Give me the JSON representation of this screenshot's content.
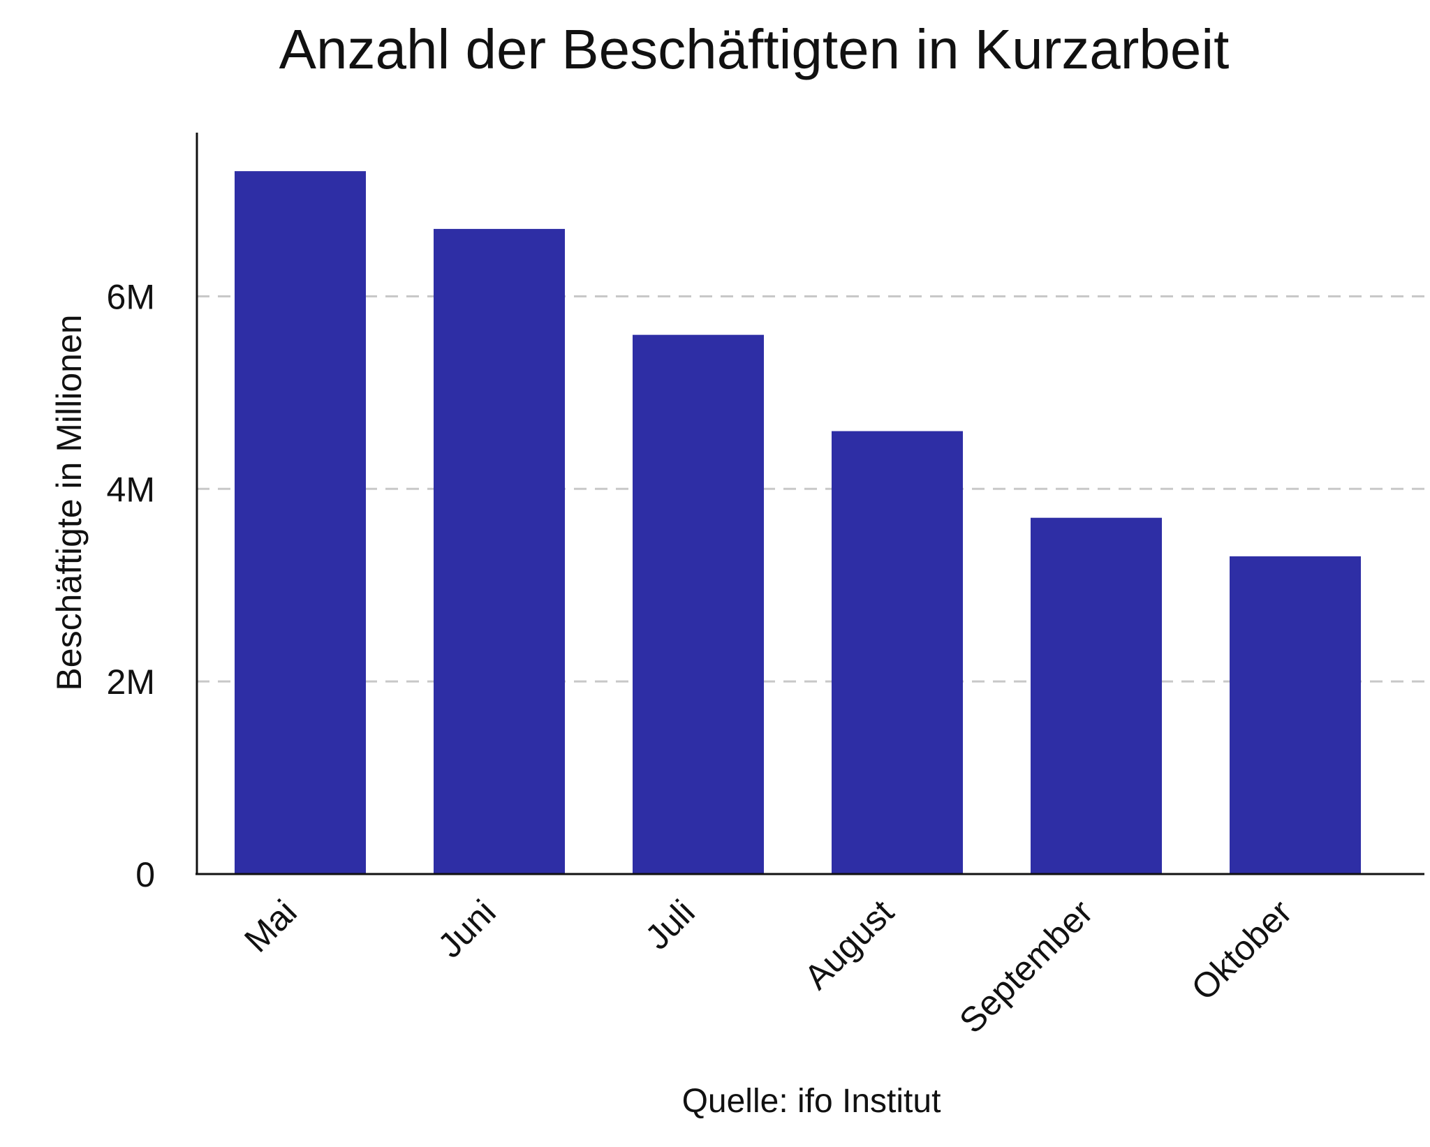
{
  "chart_data": {
    "type": "bar",
    "title": "Anzahl der Beschäftigten in Kurzarbeit",
    "xlabel": "",
    "ylabel": "Beschäftigte in Millionen",
    "categories": [
      "Mai",
      "Juni",
      "Juli",
      "August",
      "September",
      "Oktober"
    ],
    "values": [
      7.3,
      6.7,
      5.6,
      4.6,
      3.7,
      3.3
    ],
    "ylim": [
      0,
      7.7
    ],
    "yticks": [
      0,
      2,
      4,
      6
    ],
    "ytick_labels": [
      "0",
      "2M",
      "4M",
      "6M"
    ],
    "grid": "horizontal dashed",
    "legend": "none",
    "bar_color": "#2e2ea5",
    "source": "Quelle: ifo Institut"
  }
}
